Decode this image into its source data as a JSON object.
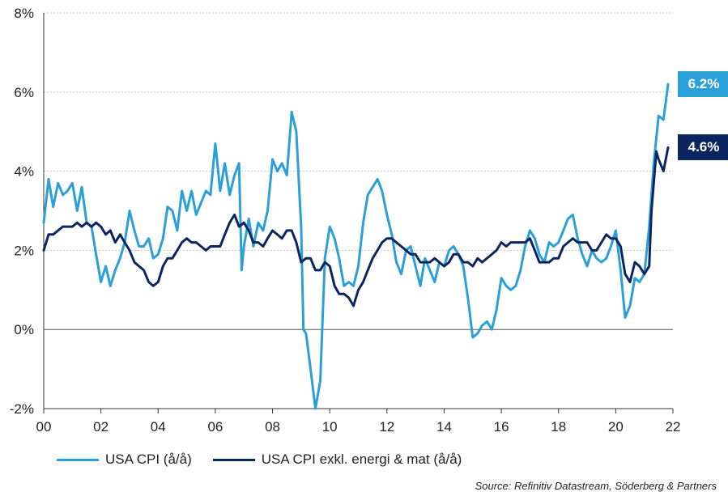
{
  "chart_data": {
    "type": "line",
    "x_start": 2000,
    "x_end": 2022,
    "xlim": [
      2000,
      2022
    ],
    "ylim": [
      -2,
      8
    ],
    "y_ticks": [
      -2,
      0,
      2,
      4,
      6,
      8
    ],
    "y_tick_labels": [
      "-2%",
      "0%",
      "2%",
      "4%",
      "6%",
      "8%"
    ],
    "x_ticks": [
      2000,
      2002,
      2004,
      2006,
      2008,
      2010,
      2012,
      2014,
      2016,
      2018,
      2020,
      2022
    ],
    "x_tick_labels": [
      "00",
      "02",
      "04",
      "06",
      "08",
      "10",
      "12",
      "14",
      "16",
      "18",
      "20",
      "22"
    ],
    "grid": true,
    "zero_line": true,
    "legend_position": "bottom",
    "series": [
      {
        "name": "USA CPI (å/å)",
        "color": "#2a9fd8",
        "end_label": "6.2%",
        "values": [
          [
            2000,
            2.7
          ],
          [
            2000.17,
            3.8
          ],
          [
            2000.33,
            3.1
          ],
          [
            2000.5,
            3.7
          ],
          [
            2000.67,
            3.4
          ],
          [
            2000.83,
            3.5
          ],
          [
            2001,
            3.7
          ],
          [
            2001.17,
            3.0
          ],
          [
            2001.33,
            3.6
          ],
          [
            2001.5,
            2.7
          ],
          [
            2001.67,
            2.6
          ],
          [
            2001.83,
            1.9
          ],
          [
            2002,
            1.2
          ],
          [
            2002.17,
            1.6
          ],
          [
            2002.33,
            1.1
          ],
          [
            2002.5,
            1.5
          ],
          [
            2002.67,
            1.8
          ],
          [
            2002.83,
            2.2
          ],
          [
            2003,
            3.0
          ],
          [
            2003.17,
            2.5
          ],
          [
            2003.33,
            2.1
          ],
          [
            2003.5,
            2.1
          ],
          [
            2003.67,
            2.3
          ],
          [
            2003.83,
            1.8
          ],
          [
            2004,
            1.9
          ],
          [
            2004.17,
            2.3
          ],
          [
            2004.33,
            3.1
          ],
          [
            2004.5,
            3.0
          ],
          [
            2004.67,
            2.5
          ],
          [
            2004.83,
            3.5
          ],
          [
            2005,
            3.0
          ],
          [
            2005.17,
            3.5
          ],
          [
            2005.33,
            2.9
          ],
          [
            2005.5,
            3.2
          ],
          [
            2005.67,
            3.5
          ],
          [
            2005.83,
            3.4
          ],
          [
            2006,
            4.7
          ],
          [
            2006.17,
            3.5
          ],
          [
            2006.33,
            4.2
          ],
          [
            2006.5,
            3.4
          ],
          [
            2006.67,
            3.9
          ],
          [
            2006.83,
            4.2
          ],
          [
            2006.92,
            1.5
          ],
          [
            2007,
            2.1
          ],
          [
            2007.17,
            2.8
          ],
          [
            2007.33,
            2.1
          ],
          [
            2007.5,
            2.7
          ],
          [
            2007.67,
            2.5
          ],
          [
            2007.83,
            3.0
          ],
          [
            2008,
            4.3
          ],
          [
            2008.17,
            4.0
          ],
          [
            2008.33,
            4.2
          ],
          [
            2008.5,
            3.9
          ],
          [
            2008.67,
            5.5
          ],
          [
            2008.83,
            5.0
          ],
          [
            2009,
            2.6
          ],
          [
            2009.08,
            0.0
          ],
          [
            2009.17,
            -0.1
          ],
          [
            2009.33,
            -1.0
          ],
          [
            2009.5,
            -2.0
          ],
          [
            2009.67,
            -1.3
          ],
          [
            2009.83,
            1.8
          ],
          [
            2010,
            2.6
          ],
          [
            2010.17,
            2.3
          ],
          [
            2010.33,
            1.8
          ],
          [
            2010.5,
            1.1
          ],
          [
            2010.67,
            1.2
          ],
          [
            2010.83,
            1.1
          ],
          [
            2011,
            1.6
          ],
          [
            2011.17,
            2.7
          ],
          [
            2011.33,
            3.4
          ],
          [
            2011.5,
            3.6
          ],
          [
            2011.67,
            3.8
          ],
          [
            2011.83,
            3.5
          ],
          [
            2012,
            2.9
          ],
          [
            2012.17,
            2.4
          ],
          [
            2012.33,
            1.7
          ],
          [
            2012.5,
            1.4
          ],
          [
            2012.67,
            2.0
          ],
          [
            2012.83,
            2.1
          ],
          [
            2013,
            1.6
          ],
          [
            2013.17,
            1.1
          ],
          [
            2013.33,
            1.8
          ],
          [
            2013.5,
            1.5
          ],
          [
            2013.67,
            1.2
          ],
          [
            2013.83,
            1.7
          ],
          [
            2014,
            1.6
          ],
          [
            2014.17,
            2.0
          ],
          [
            2014.33,
            2.1
          ],
          [
            2014.5,
            1.9
          ],
          [
            2014.67,
            1.6
          ],
          [
            2014.83,
            0.8
          ],
          [
            2015,
            -0.2
          ],
          [
            2015.17,
            -0.1
          ],
          [
            2015.33,
            0.1
          ],
          [
            2015.5,
            0.2
          ],
          [
            2015.67,
            0.0
          ],
          [
            2015.83,
            0.5
          ],
          [
            2016,
            1.3
          ],
          [
            2016.17,
            1.1
          ],
          [
            2016.33,
            1.0
          ],
          [
            2016.5,
            1.1
          ],
          [
            2016.67,
            1.5
          ],
          [
            2016.83,
            2.1
          ],
          [
            2017,
            2.5
          ],
          [
            2017.17,
            2.3
          ],
          [
            2017.33,
            1.9
          ],
          [
            2017.5,
            1.7
          ],
          [
            2017.67,
            2.2
          ],
          [
            2017.83,
            2.1
          ],
          [
            2018,
            2.2
          ],
          [
            2018.17,
            2.5
          ],
          [
            2018.33,
            2.8
          ],
          [
            2018.5,
            2.9
          ],
          [
            2018.67,
            2.3
          ],
          [
            2018.83,
            1.9
          ],
          [
            2019,
            1.6
          ],
          [
            2019.17,
            2.0
          ],
          [
            2019.33,
            1.8
          ],
          [
            2019.5,
            1.7
          ],
          [
            2019.67,
            1.8
          ],
          [
            2019.83,
            2.1
          ],
          [
            2020,
            2.5
          ],
          [
            2020.17,
            1.5
          ],
          [
            2020.33,
            0.3
          ],
          [
            2020.5,
            0.6
          ],
          [
            2020.67,
            1.3
          ],
          [
            2020.83,
            1.2
          ],
          [
            2021,
            1.4
          ],
          [
            2021.17,
            2.6
          ],
          [
            2021.33,
            4.2
          ],
          [
            2021.5,
            5.4
          ],
          [
            2021.67,
            5.3
          ],
          [
            2021.83,
            6.2
          ]
        ]
      },
      {
        "name": "USA CPI exkl. energi & mat (å/å)",
        "color": "#0b2560",
        "end_label": "4.6%",
        "values": [
          [
            2000,
            2.0
          ],
          [
            2000.17,
            2.4
          ],
          [
            2000.33,
            2.4
          ],
          [
            2000.5,
            2.5
          ],
          [
            2000.67,
            2.6
          ],
          [
            2000.83,
            2.6
          ],
          [
            2001,
            2.6
          ],
          [
            2001.17,
            2.7
          ],
          [
            2001.33,
            2.6
          ],
          [
            2001.5,
            2.7
          ],
          [
            2001.67,
            2.6
          ],
          [
            2001.83,
            2.7
          ],
          [
            2002,
            2.6
          ],
          [
            2002.17,
            2.4
          ],
          [
            2002.33,
            2.5
          ],
          [
            2002.5,
            2.2
          ],
          [
            2002.67,
            2.4
          ],
          [
            2002.83,
            2.2
          ],
          [
            2003,
            2.0
          ],
          [
            2003.17,
            1.7
          ],
          [
            2003.33,
            1.6
          ],
          [
            2003.5,
            1.5
          ],
          [
            2003.67,
            1.2
          ],
          [
            2003.83,
            1.1
          ],
          [
            2004,
            1.2
          ],
          [
            2004.17,
            1.6
          ],
          [
            2004.33,
            1.8
          ],
          [
            2004.5,
            1.8
          ],
          [
            2004.67,
            2.0
          ],
          [
            2004.83,
            2.2
          ],
          [
            2005,
            2.3
          ],
          [
            2005.17,
            2.2
          ],
          [
            2005.33,
            2.2
          ],
          [
            2005.5,
            2.1
          ],
          [
            2005.67,
            2.0
          ],
          [
            2005.83,
            2.1
          ],
          [
            2006,
            2.1
          ],
          [
            2006.17,
            2.1
          ],
          [
            2006.33,
            2.4
          ],
          [
            2006.5,
            2.7
          ],
          [
            2006.67,
            2.9
          ],
          [
            2006.83,
            2.6
          ],
          [
            2007,
            2.7
          ],
          [
            2007.17,
            2.5
          ],
          [
            2007.33,
            2.2
          ],
          [
            2007.5,
            2.2
          ],
          [
            2007.67,
            2.1
          ],
          [
            2007.83,
            2.3
          ],
          [
            2008,
            2.5
          ],
          [
            2008.17,
            2.4
          ],
          [
            2008.33,
            2.3
          ],
          [
            2008.5,
            2.5
          ],
          [
            2008.67,
            2.5
          ],
          [
            2008.83,
            2.2
          ],
          [
            2009,
            1.7
          ],
          [
            2009.17,
            1.8
          ],
          [
            2009.33,
            1.8
          ],
          [
            2009.5,
            1.5
          ],
          [
            2009.67,
            1.5
          ],
          [
            2009.83,
            1.7
          ],
          [
            2010,
            1.6
          ],
          [
            2010.17,
            1.1
          ],
          [
            2010.33,
            0.9
          ],
          [
            2010.5,
            0.9
          ],
          [
            2010.67,
            0.8
          ],
          [
            2010.83,
            0.6
          ],
          [
            2011,
            1.0
          ],
          [
            2011.17,
            1.2
          ],
          [
            2011.33,
            1.5
          ],
          [
            2011.5,
            1.8
          ],
          [
            2011.67,
            2.0
          ],
          [
            2011.83,
            2.2
          ],
          [
            2012,
            2.3
          ],
          [
            2012.17,
            2.3
          ],
          [
            2012.33,
            2.2
          ],
          [
            2012.5,
            2.1
          ],
          [
            2012.67,
            2.0
          ],
          [
            2012.83,
            1.9
          ],
          [
            2013,
            1.9
          ],
          [
            2013.17,
            1.7
          ],
          [
            2013.33,
            1.7
          ],
          [
            2013.5,
            1.7
          ],
          [
            2013.67,
            1.8
          ],
          [
            2013.83,
            1.7
          ],
          [
            2014,
            1.6
          ],
          [
            2014.17,
            1.7
          ],
          [
            2014.33,
            1.9
          ],
          [
            2014.5,
            1.9
          ],
          [
            2014.67,
            1.7
          ],
          [
            2014.83,
            1.7
          ],
          [
            2015,
            1.6
          ],
          [
            2015.17,
            1.8
          ],
          [
            2015.33,
            1.7
          ],
          [
            2015.5,
            1.8
          ],
          [
            2015.67,
            1.9
          ],
          [
            2015.83,
            2.0
          ],
          [
            2016,
            2.2
          ],
          [
            2016.17,
            2.1
          ],
          [
            2016.33,
            2.2
          ],
          [
            2016.5,
            2.2
          ],
          [
            2016.67,
            2.2
          ],
          [
            2016.83,
            2.2
          ],
          [
            2017,
            2.3
          ],
          [
            2017.17,
            2.0
          ],
          [
            2017.33,
            1.7
          ],
          [
            2017.5,
            1.7
          ],
          [
            2017.67,
            1.7
          ],
          [
            2017.83,
            1.8
          ],
          [
            2018,
            1.8
          ],
          [
            2018.17,
            2.1
          ],
          [
            2018.33,
            2.2
          ],
          [
            2018.5,
            2.3
          ],
          [
            2018.67,
            2.2
          ],
          [
            2018.83,
            2.2
          ],
          [
            2019,
            2.2
          ],
          [
            2019.17,
            2.0
          ],
          [
            2019.33,
            2.0
          ],
          [
            2019.5,
            2.2
          ],
          [
            2019.67,
            2.4
          ],
          [
            2019.83,
            2.3
          ],
          [
            2020,
            2.3
          ],
          [
            2020.17,
            2.1
          ],
          [
            2020.33,
            1.4
          ],
          [
            2020.5,
            1.2
          ],
          [
            2020.67,
            1.7
          ],
          [
            2020.83,
            1.6
          ],
          [
            2021,
            1.4
          ],
          [
            2021.17,
            1.6
          ],
          [
            2021.25,
            3.0
          ],
          [
            2021.42,
            4.5
          ],
          [
            2021.5,
            4.3
          ],
          [
            2021.67,
            4.0
          ],
          [
            2021.83,
            4.6
          ]
        ]
      }
    ]
  },
  "source": "Source: Refinitiv Datastream, Söderberg & Partners"
}
